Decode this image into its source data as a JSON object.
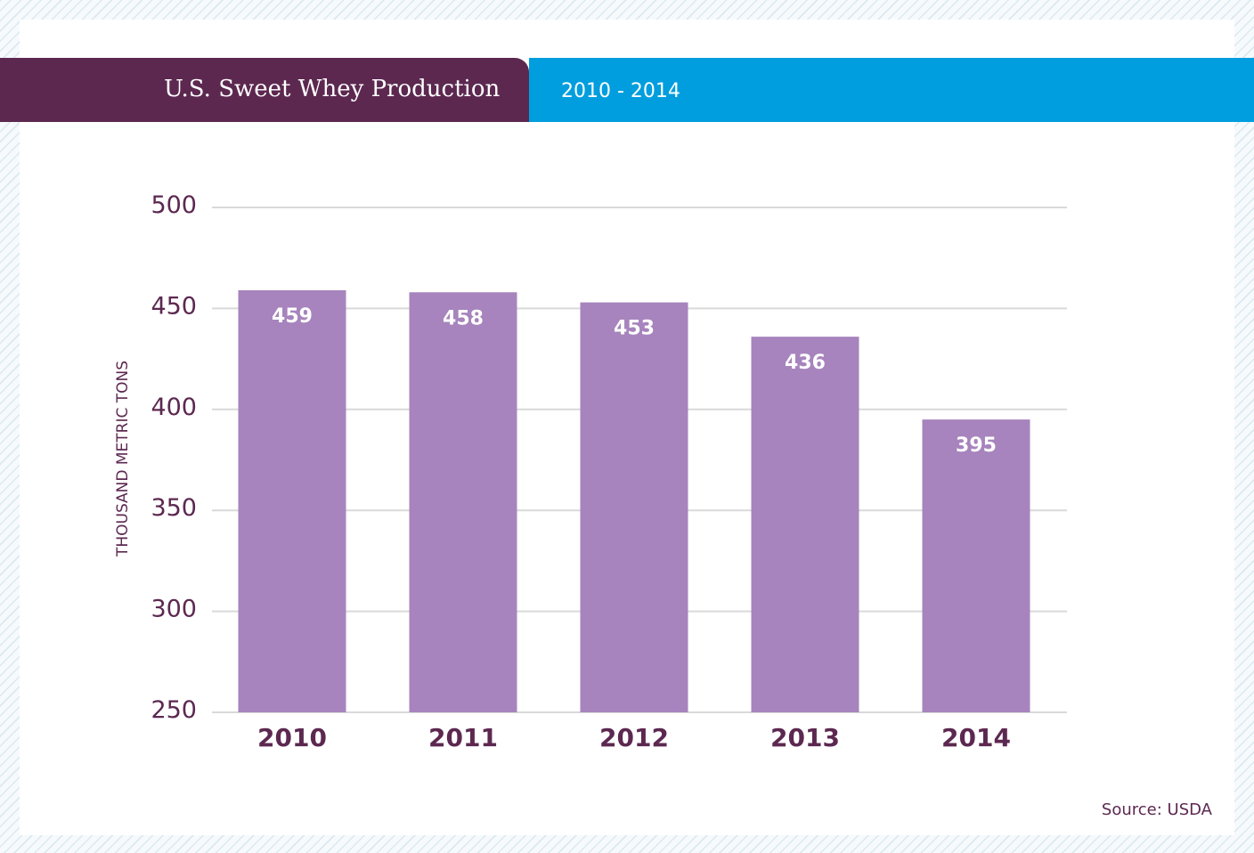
{
  "header": {
    "title": "U.S. Sweet Whey Production",
    "range": "2010 - 2014"
  },
  "source": "Source: USDA",
  "colors": {
    "title_band": "#5c2850",
    "range_band": "#009ede",
    "bar": "#a784bd",
    "text": "#5c2850",
    "grid": "#d9d9d9"
  },
  "chart_data": {
    "type": "bar",
    "title": "U.S. Sweet Whey Production",
    "subtitle": "2010 - 2014",
    "categories": [
      "2010",
      "2011",
      "2012",
      "2013",
      "2014"
    ],
    "values": [
      459,
      458,
      453,
      436,
      395
    ],
    "ylabel": "THOUSAND METRIC TONS",
    "xlabel": "",
    "ylim": [
      250,
      500
    ],
    "yticks": [
      250,
      300,
      350,
      400,
      450,
      500
    ],
    "grid": true,
    "data_labels": true,
    "legend": "none"
  }
}
